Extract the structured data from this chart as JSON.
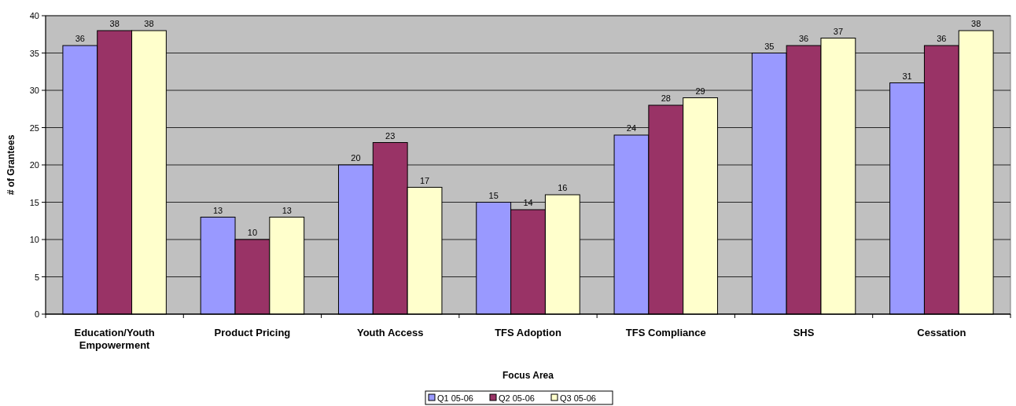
{
  "chart_data": {
    "type": "bar",
    "xlabel": "Focus Area",
    "ylabel": "# of Grantees",
    "categories": [
      "Education/Youth Empowerment",
      "Product Pricing",
      "Youth Access",
      "TFS Adoption",
      "TFS Compliance",
      "SHS",
      "Cessation"
    ],
    "series": [
      {
        "name": "Q1 05-06",
        "color": "#9999ff",
        "values": [
          36,
          13,
          20,
          15,
          24,
          35,
          31
        ]
      },
      {
        "name": "Q2 05-06",
        "color": "#993366",
        "values": [
          38,
          10,
          23,
          14,
          28,
          36,
          36
        ]
      },
      {
        "name": "Q3 05-06",
        "color": "#ffffcc",
        "values": [
          38,
          13,
          17,
          16,
          29,
          37,
          38
        ]
      }
    ],
    "ylim": [
      0,
      40
    ],
    "yticks": [
      0,
      5,
      10,
      15,
      20,
      25,
      30,
      35,
      40
    ],
    "grid": "y",
    "legend": "bottom",
    "data_labels": true
  }
}
